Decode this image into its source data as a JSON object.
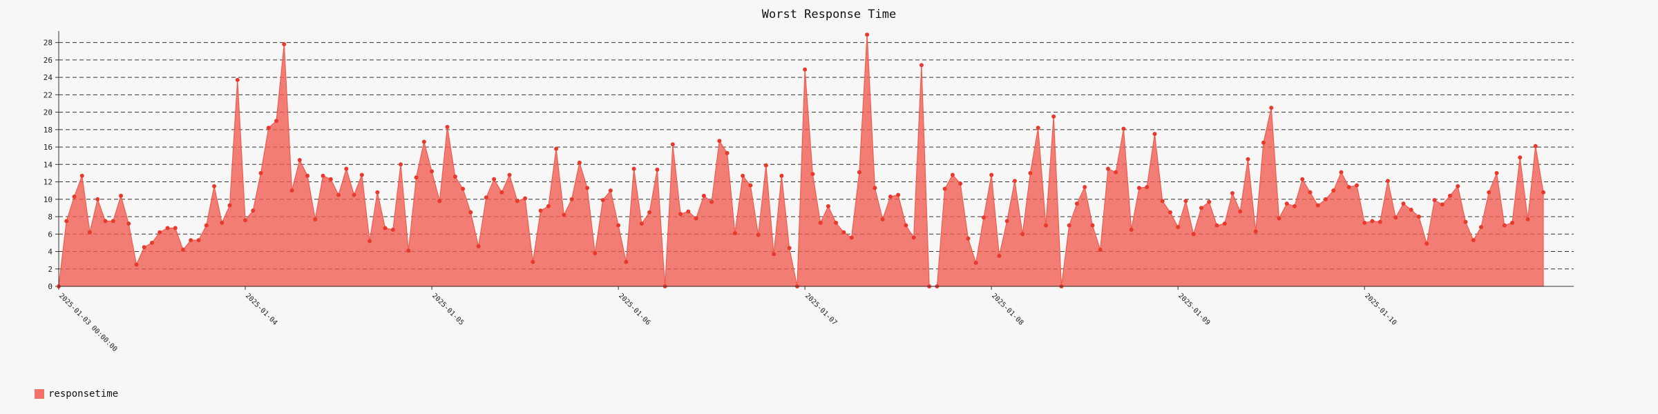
{
  "chart_data": {
    "type": "area",
    "title": "Worst Response Time",
    "xlabel": "",
    "ylabel": "",
    "ylim": [
      0,
      29
    ],
    "yticks": [
      0,
      2,
      4,
      6,
      8,
      10,
      12,
      14,
      16,
      18,
      20,
      22,
      24,
      26,
      28
    ],
    "grid": true,
    "grid_style": "dashed",
    "legend_position": "bottom-left",
    "x_start": "2025-01-03 00:00:00",
    "x_major_labels": [
      "2025-01-03 00:00:00",
      "2025-01-04",
      "2025-01-05",
      "2025-01-06",
      "2025-01-07",
      "2025-01-08",
      "2025-01-09",
      "2025-01-10"
    ],
    "series": [
      {
        "name": "responsetime",
        "color": "#f15b4f",
        "fill_opacity": 0.78,
        "values": [
          0,
          7.5,
          10.3,
          12.7,
          6.2,
          10,
          7.5,
          7.5,
          10.4,
          7.2,
          2.5,
          4.5,
          5,
          6.2,
          6.7,
          6.7,
          4.2,
          5.3,
          5.3,
          7,
          11.5,
          7.3,
          9.3,
          23.7,
          7.6,
          8.7,
          13,
          18.2,
          19,
          27.8,
          11,
          14.5,
          12.7,
          7.7,
          12.7,
          12.3,
          10.5,
          13.5,
          10.5,
          12.8,
          5.2,
          10.8,
          6.7,
          6.5,
          14,
          4.1,
          12.5,
          16.6,
          13.2,
          9.8,
          18.3,
          12.6,
          11.2,
          8.5,
          4.6,
          10.2,
          12.3,
          10.8,
          12.8,
          9.8,
          10.1,
          2.8,
          8.7,
          9.2,
          15.8,
          8.2,
          10,
          14.2,
          11.3,
          3.8,
          9.9,
          11,
          7,
          2.8,
          13.5,
          7.2,
          8.5,
          13.4,
          0,
          16.3,
          8.3,
          8.6,
          7.8,
          10.4,
          9.7,
          16.7,
          15.3,
          6.1,
          12.7,
          11.6,
          5.9,
          13.9,
          3.7,
          12.7,
          4.4,
          0,
          24.9,
          12.9,
          7.3,
          9.2,
          7.3,
          6.2,
          5.6,
          13.1,
          28.9,
          11.3,
          7.7,
          10.3,
          10.5,
          7,
          5.6,
          25.4,
          0,
          0,
          11.2,
          12.8,
          11.8,
          5.5,
          2.7,
          7.9,
          12.8,
          3.5,
          7.5,
          12.1,
          6,
          13,
          18.2,
          7,
          19.5,
          0,
          7,
          9.5,
          11.4,
          7,
          4.2,
          13.5,
          13.1,
          18.1,
          6.5,
          11.3,
          11.4,
          17.5,
          9.8,
          8.5,
          6.8,
          9.8,
          6,
          9,
          9.7,
          7,
          7.2,
          10.7,
          8.6,
          14.6,
          6.3,
          16.5,
          20.5,
          7.8,
          9.5,
          9.2,
          12.3,
          10.8,
          9.3,
          10,
          11,
          13.1,
          11.4,
          11.6,
          7.3,
          7.5,
          7.4,
          12.1,
          7.9,
          9.5,
          8.8,
          8,
          4.9,
          9.9,
          9.4,
          10.4,
          11.5,
          7.4,
          5.3,
          6.8,
          10.8,
          13,
          7,
          7.3,
          14.8,
          7.7,
          16.1,
          10.8
        ]
      }
    ],
    "legend": [
      {
        "label": "responsetime",
        "color": "#f15b4f"
      }
    ]
  }
}
